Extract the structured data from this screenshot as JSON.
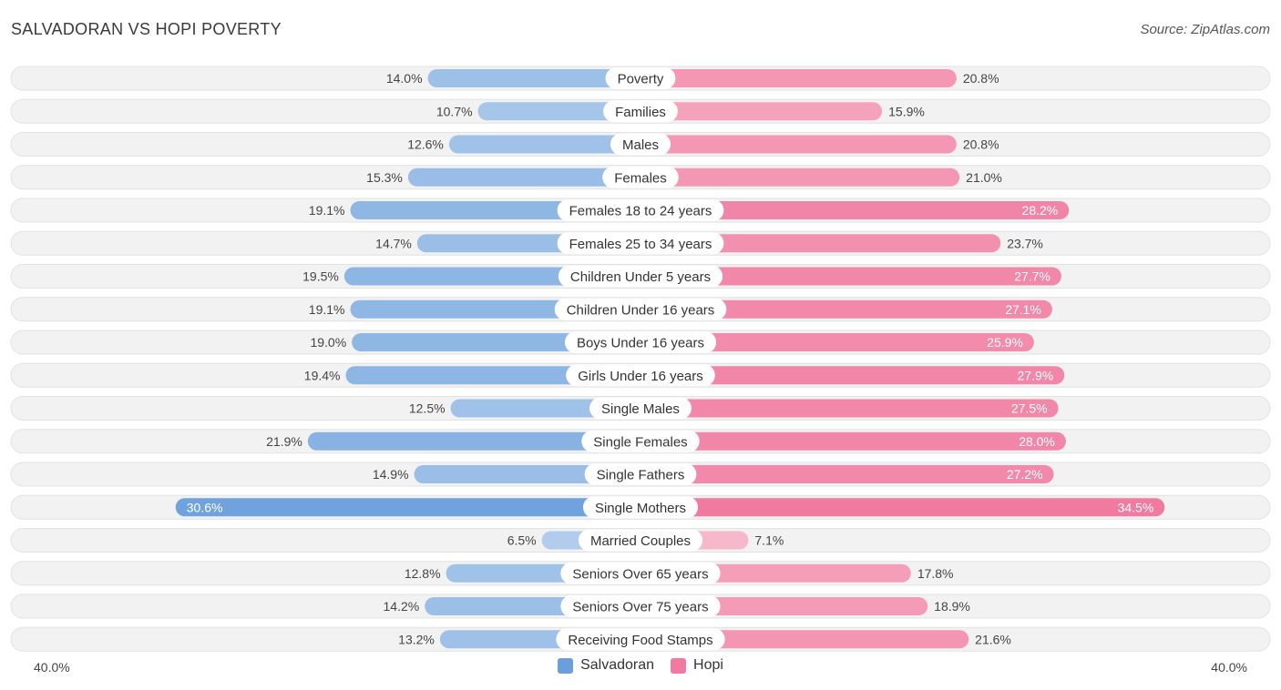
{
  "header": {
    "title": "SALVADORAN VS HOPI POVERTY",
    "source": "Source: ZipAtlas.com"
  },
  "colors": {
    "salvadoran": "#6a9fdb",
    "hopi": "#f07aa0"
  },
  "axis": {
    "left_label": "40.0%",
    "right_label": "40.0%"
  },
  "legend": {
    "salvadoran": "Salvadoran",
    "hopi": "Hopi"
  },
  "chart_data": {
    "type": "bar",
    "orientation": "horizontal-diverging",
    "title": "SALVADORAN VS HOPI POVERTY",
    "xlim": [
      -40,
      40
    ],
    "unit": "%",
    "categories": [
      "Poverty",
      "Families",
      "Males",
      "Females",
      "Females 18 to 24 years",
      "Females 25 to 34 years",
      "Children Under 5 years",
      "Children Under 16 years",
      "Boys Under 16 years",
      "Girls Under 16 years",
      "Single Males",
      "Single Females",
      "Single Fathers",
      "Single Mothers",
      "Married Couples",
      "Seniors Over 65 years",
      "Seniors Over 75 years",
      "Receiving Food Stamps"
    ],
    "series": [
      {
        "name": "Salvadoran",
        "side": "left",
        "values": [
          14.0,
          10.7,
          12.6,
          15.3,
          19.1,
          14.7,
          19.5,
          19.1,
          19.0,
          19.4,
          12.5,
          21.9,
          14.9,
          30.6,
          6.5,
          12.8,
          14.2,
          13.2
        ],
        "labels": [
          "14.0%",
          "10.7%",
          "12.6%",
          "15.3%",
          "19.1%",
          "14.7%",
          "19.5%",
          "19.1%",
          "19.0%",
          "19.4%",
          "12.5%",
          "21.9%",
          "14.9%",
          "30.6%",
          "6.5%",
          "12.8%",
          "14.2%",
          "13.2%"
        ]
      },
      {
        "name": "Hopi",
        "side": "right",
        "values": [
          20.8,
          15.9,
          20.8,
          21.0,
          28.2,
          23.7,
          27.7,
          27.1,
          25.9,
          27.9,
          27.5,
          28.0,
          27.2,
          34.5,
          7.1,
          17.8,
          18.9,
          21.6
        ],
        "labels": [
          "20.8%",
          "15.9%",
          "20.8%",
          "21.0%",
          "28.2%",
          "23.7%",
          "27.7%",
          "27.1%",
          "25.9%",
          "27.9%",
          "27.5%",
          "28.0%",
          "27.2%",
          "34.5%",
          "7.1%",
          "17.8%",
          "18.9%",
          "21.6%"
        ]
      }
    ],
    "legend_position": "bottom-center"
  }
}
